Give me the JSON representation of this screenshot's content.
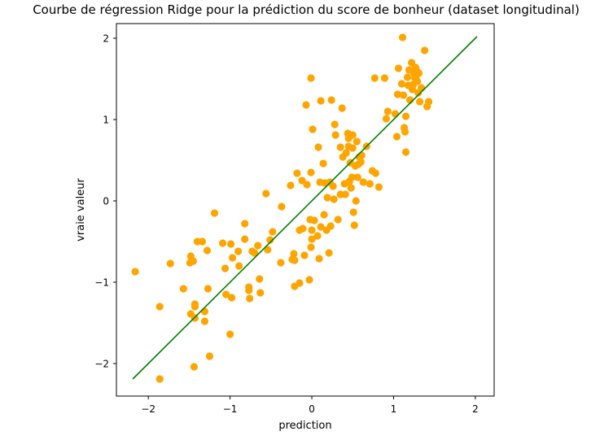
{
  "chart_data": {
    "type": "scatter",
    "title": "Courbe de régression Ridge pour la prédiction du score de bonheur (dataset longitudinal)",
    "xlabel": "prediction",
    "ylabel": "vraie valeur",
    "xlim": [
      -2.39,
      2.23
    ],
    "ylim": [
      -2.4,
      2.18
    ],
    "xticks": [
      -2,
      -1,
      0,
      1,
      2
    ],
    "yticks": [
      -2,
      -1,
      0,
      1,
      2
    ],
    "xtick_labels": [
      "−2",
      "−1",
      "0",
      "1",
      "2"
    ],
    "ytick_labels": [
      "−2",
      "−1",
      "0",
      "1",
      "2"
    ],
    "grid": false,
    "colors": {
      "points": "#ffa500",
      "line": "#008000"
    },
    "line": {
      "x": [
        -2.19,
        2.02
      ],
      "y": [
        -2.19,
        2.02
      ]
    },
    "points": [
      [
        -2.16,
        -0.87
      ],
      [
        -1.86,
        -1.3
      ],
      [
        -1.86,
        -2.19
      ],
      [
        -1.73,
        -0.77
      ],
      [
        -1.57,
        -1.08
      ],
      [
        -1.49,
        -0.76
      ],
      [
        -1.48,
        -1.39
      ],
      [
        -1.48,
        -0.68
      ],
      [
        -1.45,
        -0.74
      ],
      [
        -1.44,
        -2.04
      ],
      [
        -1.43,
        -1.3
      ],
      [
        -1.43,
        -1.27
      ],
      [
        -1.43,
        -1.44
      ],
      [
        -1.4,
        -0.5
      ],
      [
        -1.34,
        -0.5
      ],
      [
        -1.31,
        -1.36
      ],
      [
        -1.31,
        -1.48
      ],
      [
        -1.28,
        -0.61
      ],
      [
        -1.27,
        -1.08
      ],
      [
        -1.25,
        -1.91
      ],
      [
        -1.19,
        -0.15
      ],
      [
        -1.09,
        -0.52
      ],
      [
        -1.06,
        -0.83
      ],
      [
        -1.05,
        -1.15
      ],
      [
        -1.0,
        -1.64
      ],
      [
        -0.99,
        -0.53
      ],
      [
        -0.98,
        -1.19
      ],
      [
        -0.97,
        -0.7
      ],
      [
        -0.9,
        -0.62
      ],
      [
        -0.89,
        -0.8
      ],
      [
        -0.82,
        -0.28
      ],
      [
        -0.82,
        -0.47
      ],
      [
        -0.77,
        -1.1
      ],
      [
        -0.77,
        -1.06
      ],
      [
        -0.76,
        -1.2
      ],
      [
        -0.73,
        -0.62
      ],
      [
        -0.7,
        -0.64
      ],
      [
        -0.66,
        -0.55
      ],
      [
        -0.64,
        -0.96
      ],
      [
        -0.63,
        -1.13
      ],
      [
        -0.56,
        0.09
      ],
      [
        -0.54,
        -0.6
      ],
      [
        -0.51,
        -0.48
      ],
      [
        -0.48,
        -0.38
      ],
      [
        -0.38,
        -0.76
      ],
      [
        -0.37,
        -0.07
      ],
      [
        -0.26,
        0.19
      ],
      [
        -0.24,
        -0.72
      ],
      [
        -0.22,
        -0.65
      ],
      [
        -0.21,
        -0.73
      ],
      [
        -0.21,
        -1.05
      ],
      [
        -0.18,
        0.34
      ],
      [
        -0.15,
        -1.01
      ],
      [
        -0.15,
        -0.36
      ],
      [
        -0.12,
        0.25
      ],
      [
        -0.11,
        -0.34
      ],
      [
        -0.09,
        -0.67
      ],
      [
        -0.07,
        1.18
      ],
      [
        -0.06,
        0.2
      ],
      [
        -0.03,
        -0.97
      ],
      [
        -0.02,
        -0.23
      ],
      [
        -0.01,
        0.35
      ],
      [
        -0.01,
        1.51
      ],
      [
        -0.01,
        -0.57
      ],
      [
        0.0,
        -0.36
      ],
      [
        0.0,
        -0.47
      ],
      [
        0.01,
        0.88
      ],
      [
        0.03,
        -0.24
      ],
      [
        0.07,
        -0.43
      ],
      [
        0.08,
        0.66
      ],
      [
        0.09,
        -0.71
      ],
      [
        0.1,
        0.23
      ],
      [
        0.11,
        -0.32
      ],
      [
        0.11,
        1.23
      ],
      [
        0.14,
        0.46
      ],
      [
        0.15,
        -0.17
      ],
      [
        0.16,
        0.22
      ],
      [
        0.18,
        -0.36
      ],
      [
        0.19,
        0.04
      ],
      [
        0.21,
        -0.64
      ],
      [
        0.22,
        0.23
      ],
      [
        0.23,
        -0.31
      ],
      [
        0.24,
        1.24
      ],
      [
        0.26,
        0.18
      ],
      [
        0.27,
        0.02
      ],
      [
        0.28,
        0.94
      ],
      [
        0.29,
        0.81
      ],
      [
        0.32,
        -0.23
      ],
      [
        0.35,
        0.08
      ],
      [
        0.35,
        0.66
      ],
      [
        0.37,
        1.14
      ],
      [
        0.38,
        0.54
      ],
      [
        0.4,
        0.21
      ],
      [
        0.41,
        0.08
      ],
      [
        0.42,
        0.59
      ],
      [
        0.44,
        0.83
      ],
      [
        0.45,
        0.67
      ],
      [
        0.45,
        0.77
      ],
      [
        0.46,
        0.24
      ],
      [
        0.47,
        0.47
      ],
      [
        0.48,
        0.16
      ],
      [
        0.49,
        0.29
      ],
      [
        0.5,
        0.81
      ],
      [
        0.5,
        0.65
      ],
      [
        0.51,
        -0.14
      ],
      [
        0.52,
        -0.3
      ],
      [
        0.53,
        0.43
      ],
      [
        0.54,
        0.0
      ],
      [
        0.55,
        0.73
      ],
      [
        0.56,
        0.29
      ],
      [
        0.57,
        0.45
      ],
      [
        0.58,
        0.54
      ],
      [
        0.6,
        0.48
      ],
      [
        0.61,
        0.56
      ],
      [
        0.63,
        0.23
      ],
      [
        0.67,
        0.67
      ],
      [
        0.71,
        0.21
      ],
      [
        0.74,
        0.37
      ],
      [
        0.77,
        1.51
      ],
      [
        0.78,
        0.34
      ],
      [
        0.82,
        0.17
      ],
      [
        0.89,
        1.51
      ],
      [
        0.91,
        1.01
      ],
      [
        0.93,
        1.1
      ],
      [
        1.02,
        1.07
      ],
      [
        1.04,
        0.79
      ],
      [
        1.05,
        1.31
      ],
      [
        1.06,
        1.63
      ],
      [
        1.1,
        1.44
      ],
      [
        1.11,
        2.01
      ],
      [
        1.12,
        1.3
      ],
      [
        1.13,
        0.9
      ],
      [
        1.14,
        0.85
      ],
      [
        1.15,
        0.6
      ],
      [
        1.15,
        1.04
      ],
      [
        1.17,
        1.52
      ],
      [
        1.18,
        1.42
      ],
      [
        1.2,
        1.24
      ],
      [
        1.22,
        1.7
      ],
      [
        1.23,
        1.37
      ],
      [
        1.25,
        1.57
      ],
      [
        1.26,
        1.51
      ],
      [
        1.27,
        1.52
      ],
      [
        1.27,
        1.64
      ],
      [
        1.28,
        1.6
      ],
      [
        1.29,
        1.47
      ],
      [
        1.3,
        1.33
      ],
      [
        1.31,
        1.57
      ],
      [
        1.32,
        1.22
      ],
      [
        1.34,
        1.39
      ],
      [
        1.38,
        1.85
      ],
      [
        1.41,
        1.16
      ],
      [
        1.43,
        1.22
      ],
      [
        1.19,
        1.61
      ],
      [
        1.24,
        1.43
      ]
    ]
  }
}
